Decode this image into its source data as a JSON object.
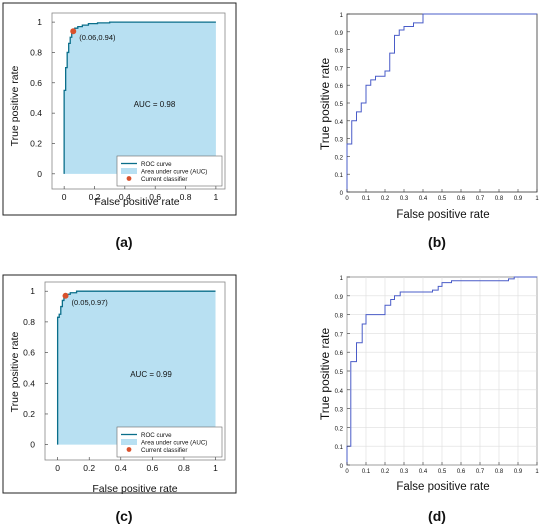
{
  "colors": {
    "auc_fill": "#b8e0f2",
    "roc_line_matlab": "#0a6e8a",
    "roc_line_plain": "#4a5cc8",
    "classifier_dot": "#d9512c",
    "frame": "#222222",
    "grid": "#dddddd"
  },
  "chart_data": [
    {
      "panel": "(a)",
      "type": "area",
      "xlabel": "False positive rate",
      "ylabel": "True positive rate",
      "xlim": [
        -0.08,
        1.06
      ],
      "ylim": [
        -0.1,
        1.06
      ],
      "xticks": [
        "0",
        "0.2",
        "0.4",
        "0.6",
        "0.8",
        "1"
      ],
      "yticks": [
        "0",
        "0.2",
        "0.4",
        "0.6",
        "0.8",
        "1"
      ],
      "grid": false,
      "x": [
        0,
        0,
        0.01,
        0.01,
        0.02,
        0.02,
        0.03,
        0.03,
        0.04,
        0.04,
        0.05,
        0.05,
        0.06,
        0.06,
        0.07,
        0.07,
        0.09,
        0.09,
        0.12,
        0.12,
        0.16,
        0.16,
        0.22,
        0.22,
        0.3,
        0.3,
        1
      ],
      "y": [
        0,
        0.55,
        0.55,
        0.7,
        0.7,
        0.8,
        0.8,
        0.86,
        0.86,
        0.9,
        0.9,
        0.93,
        0.93,
        0.94,
        0.94,
        0.96,
        0.96,
        0.97,
        0.97,
        0.98,
        0.98,
        0.99,
        0.99,
        0.995,
        0.995,
        1,
        1
      ],
      "annotation": {
        "x": 0.06,
        "y": 0.94,
        "label": "(0.06,0.94)"
      },
      "auc_label": "AUC = 0.98",
      "legend": [
        "ROC curve",
        "Area under curve (AUC)",
        "Current classifier"
      ],
      "legend_position": "bottom-right"
    },
    {
      "panel": "(b)",
      "type": "line",
      "xlabel": "False positive rate",
      "ylabel": "True positive rate",
      "xlim": [
        0,
        1
      ],
      "ylim": [
        0,
        1
      ],
      "xticks": [
        "0",
        "0.1",
        "0.2",
        "0.3",
        "0.4",
        "0.5",
        "0.6",
        "0.7",
        "0.8",
        "0.9",
        "1"
      ],
      "yticks": [
        "0",
        "0.1",
        "0.2",
        "0.3",
        "0.4",
        "0.5",
        "0.6",
        "0.7",
        "0.8",
        "0.9",
        "1"
      ],
      "grid": false,
      "x": [
        0,
        0,
        0.025,
        0.025,
        0.05,
        0.05,
        0.075,
        0.075,
        0.1,
        0.1,
        0.125,
        0.125,
        0.15,
        0.15,
        0.2,
        0.2,
        0.225,
        0.225,
        0.25,
        0.25,
        0.275,
        0.275,
        0.3,
        0.3,
        0.35,
        0.35,
        0.4,
        0.4,
        1
      ],
      "y": [
        0,
        0.27,
        0.27,
        0.4,
        0.4,
        0.45,
        0.45,
        0.5,
        0.5,
        0.6,
        0.6,
        0.63,
        0.63,
        0.65,
        0.65,
        0.68,
        0.68,
        0.78,
        0.78,
        0.88,
        0.88,
        0.91,
        0.91,
        0.93,
        0.93,
        0.95,
        0.95,
        1,
        1
      ]
    },
    {
      "panel": "(c)",
      "type": "area",
      "xlabel": "False positive rate",
      "ylabel": "True positive rate",
      "xlim": [
        -0.08,
        1.06
      ],
      "ylim": [
        -0.1,
        1.06
      ],
      "xticks": [
        "0",
        "0.2",
        "0.4",
        "0.6",
        "0.8",
        "1"
      ],
      "yticks": [
        "0",
        "0.2",
        "0.4",
        "0.6",
        "0.8",
        "1"
      ],
      "grid": false,
      "x": [
        0,
        0,
        0.01,
        0.01,
        0.02,
        0.02,
        0.03,
        0.03,
        0.04,
        0.04,
        0.05,
        0.05,
        0.06,
        0.06,
        0.08,
        0.08,
        0.12,
        0.12,
        1
      ],
      "y": [
        0,
        0.83,
        0.83,
        0.85,
        0.85,
        0.9,
        0.9,
        0.94,
        0.94,
        0.96,
        0.96,
        0.97,
        0.97,
        0.98,
        0.98,
        0.99,
        0.99,
        1,
        1
      ],
      "annotation": {
        "x": 0.05,
        "y": 0.97,
        "label": "(0.05,0.97)"
      },
      "auc_label": "AUC = 0.99",
      "legend": [
        "ROC curve",
        "Area under curve (AUC)",
        "Current classifier"
      ],
      "legend_position": "bottom-right"
    },
    {
      "panel": "(d)",
      "type": "line",
      "xlabel": "False positive rate",
      "ylabel": "True positive rate",
      "xlim": [
        0,
        1
      ],
      "ylim": [
        0,
        1
      ],
      "xticks": [
        "0",
        "0.1",
        "0.2",
        "0.3",
        "0.4",
        "0.5",
        "0.6",
        "0.7",
        "0.8",
        "0.9",
        "1"
      ],
      "yticks": [
        "0",
        "0.1",
        "0.2",
        "0.3",
        "0.4",
        "0.5",
        "0.6",
        "0.7",
        "0.8",
        "0.9",
        "1"
      ],
      "grid": true,
      "x": [
        0,
        0,
        0.02,
        0.02,
        0.05,
        0.05,
        0.08,
        0.08,
        0.1,
        0.1,
        0.2,
        0.2,
        0.23,
        0.23,
        0.25,
        0.25,
        0.28,
        0.28,
        0.45,
        0.45,
        0.48,
        0.48,
        0.5,
        0.5,
        0.55,
        0.55,
        0.85,
        0.85,
        0.88,
        0.88,
        1
      ],
      "y": [
        0,
        0.1,
        0.1,
        0.55,
        0.55,
        0.65,
        0.65,
        0.75,
        0.75,
        0.8,
        0.8,
        0.85,
        0.85,
        0.88,
        0.88,
        0.9,
        0.9,
        0.92,
        0.92,
        0.93,
        0.93,
        0.95,
        0.95,
        0.97,
        0.97,
        0.98,
        0.98,
        0.99,
        0.99,
        1,
        1
      ]
    }
  ]
}
